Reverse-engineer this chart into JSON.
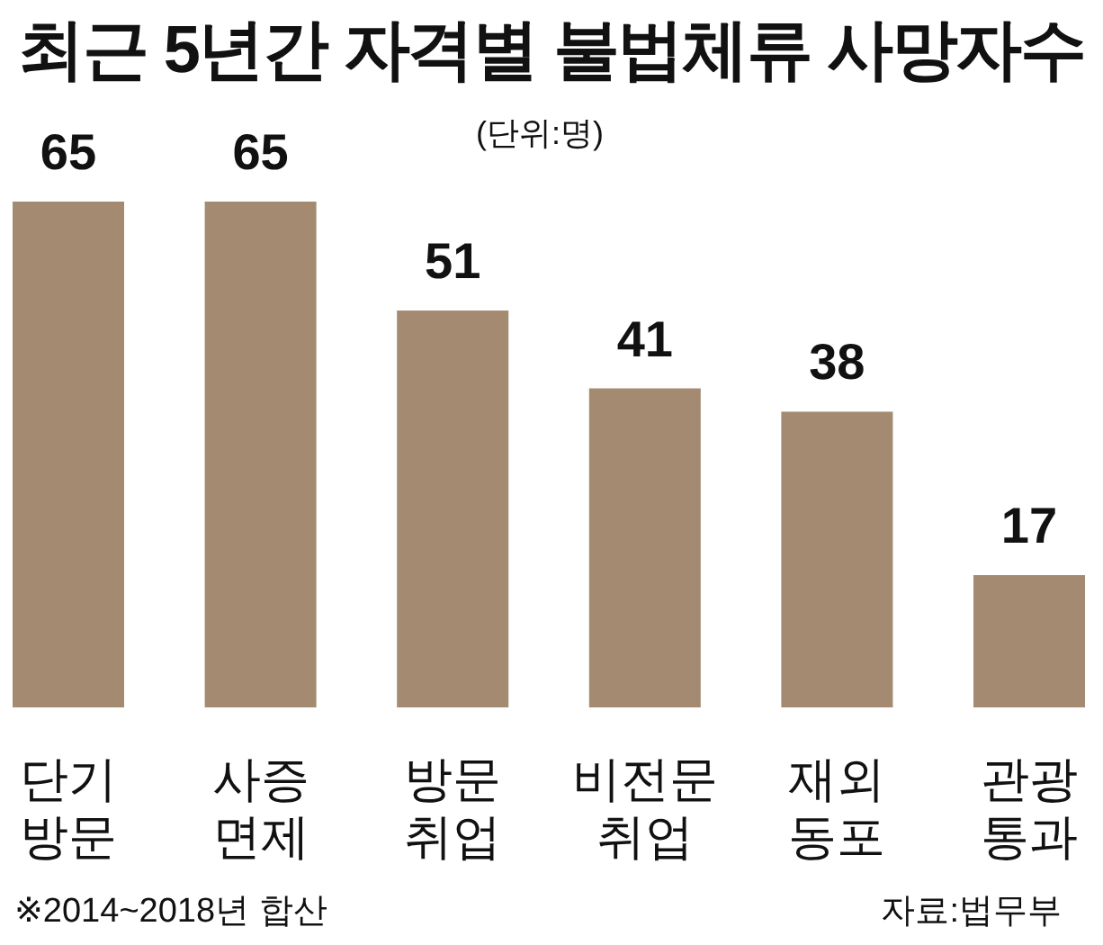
{
  "chart_data": {
    "type": "bar",
    "title": "최근 5년간 자격별 불법체류 사망자수",
    "subtitle": "(단위:명)",
    "categories": [
      "단기\n방문",
      "사증\n면제",
      "방문\n취업",
      "비전문\n취업",
      "재외\n동포",
      "관광\n통과"
    ],
    "values": [
      65,
      65,
      51,
      41,
      38,
      17
    ],
    "color": "#a48a70",
    "data_labels": true,
    "annotations": [
      "※2014~2018년 합산",
      "자료:법무부"
    ]
  }
}
